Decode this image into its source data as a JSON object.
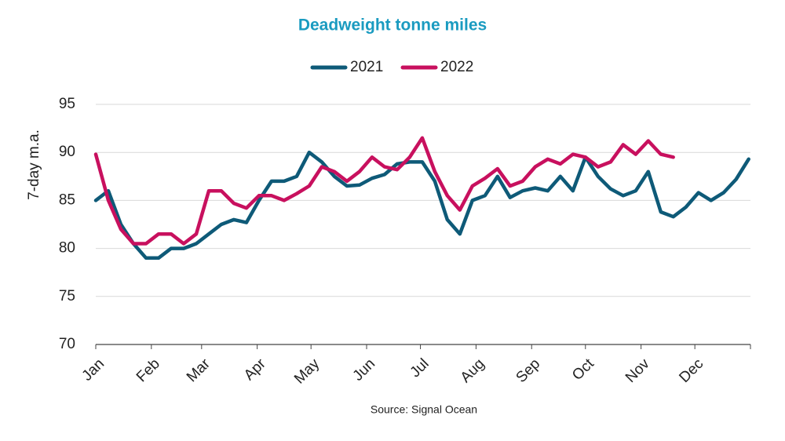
{
  "chart_data": {
    "type": "line",
    "title": "Deadweight tonne miles",
    "y_label": "7-day m.a.",
    "source": "Source: Signal Ocean",
    "x": [
      0,
      7,
      14,
      21,
      28,
      35,
      42,
      49,
      56,
      63,
      70,
      77,
      84,
      91,
      98,
      105,
      112,
      119,
      126,
      133,
      140,
      147,
      154,
      161,
      168,
      175,
      182,
      189,
      196,
      203,
      210,
      217,
      224,
      231,
      238,
      245,
      252,
      259,
      266,
      273,
      280,
      287,
      294,
      301,
      308,
      315,
      322,
      329,
      336,
      343,
      350,
      357,
      364
    ],
    "xlim": [
      0,
      365
    ],
    "xticks": [
      {
        "value": 0,
        "label": "Jan"
      },
      {
        "value": 31,
        "label": "Feb"
      },
      {
        "value": 59,
        "label": "Mar"
      },
      {
        "value": 90,
        "label": "Apr"
      },
      {
        "value": 120,
        "label": "May"
      },
      {
        "value": 151,
        "label": "Jun"
      },
      {
        "value": 181,
        "label": "Jul"
      },
      {
        "value": 212,
        "label": "Aug"
      },
      {
        "value": 243,
        "label": "Sep"
      },
      {
        "value": 273,
        "label": "Oct"
      },
      {
        "value": 304,
        "label": "Nov"
      },
      {
        "value": 334,
        "label": "Dec"
      }
    ],
    "ylim": [
      70,
      95
    ],
    "yticks": [
      70,
      75,
      80,
      85,
      90,
      95
    ],
    "grid": true,
    "series": [
      {
        "name": "2021",
        "color": "#0e5a78",
        "values": [
          85,
          86,
          82.5,
          80.5,
          79,
          79,
          80,
          80,
          80.5,
          81.5,
          82.5,
          83,
          82.7,
          85,
          87,
          87,
          87.5,
          90,
          89,
          87.5,
          86.5,
          86.6,
          87.3,
          87.7,
          88.8,
          89,
          89,
          87,
          83,
          81.5,
          85,
          85.5,
          87.5,
          85.3,
          86,
          86.3,
          86,
          87.5,
          86,
          89.5,
          87.5,
          86.2,
          85.5,
          86,
          88,
          83.8,
          83.3,
          84.3,
          85.8,
          85,
          85.8,
          87.2,
          89.3
        ]
      },
      {
        "name": "2022",
        "color": "#c8105e",
        "values": [
          89.8,
          85,
          82,
          80.5,
          80.5,
          81.5,
          81.5,
          80.5,
          81.5,
          86,
          86,
          84.7,
          84.2,
          85.5,
          85.5,
          85,
          85.7,
          86.5,
          88.5,
          88,
          87,
          88,
          89.5,
          88.5,
          88.2,
          89.5,
          91.5,
          88,
          85.5,
          84,
          86.5,
          87.3,
          88.3,
          86.5,
          87,
          88.5,
          89.3,
          88.8,
          89.8,
          89.5,
          88.5,
          89,
          90.8,
          89.8,
          91.2,
          89.8,
          89.5,
          null,
          null,
          null,
          null,
          null,
          null
        ]
      }
    ]
  }
}
